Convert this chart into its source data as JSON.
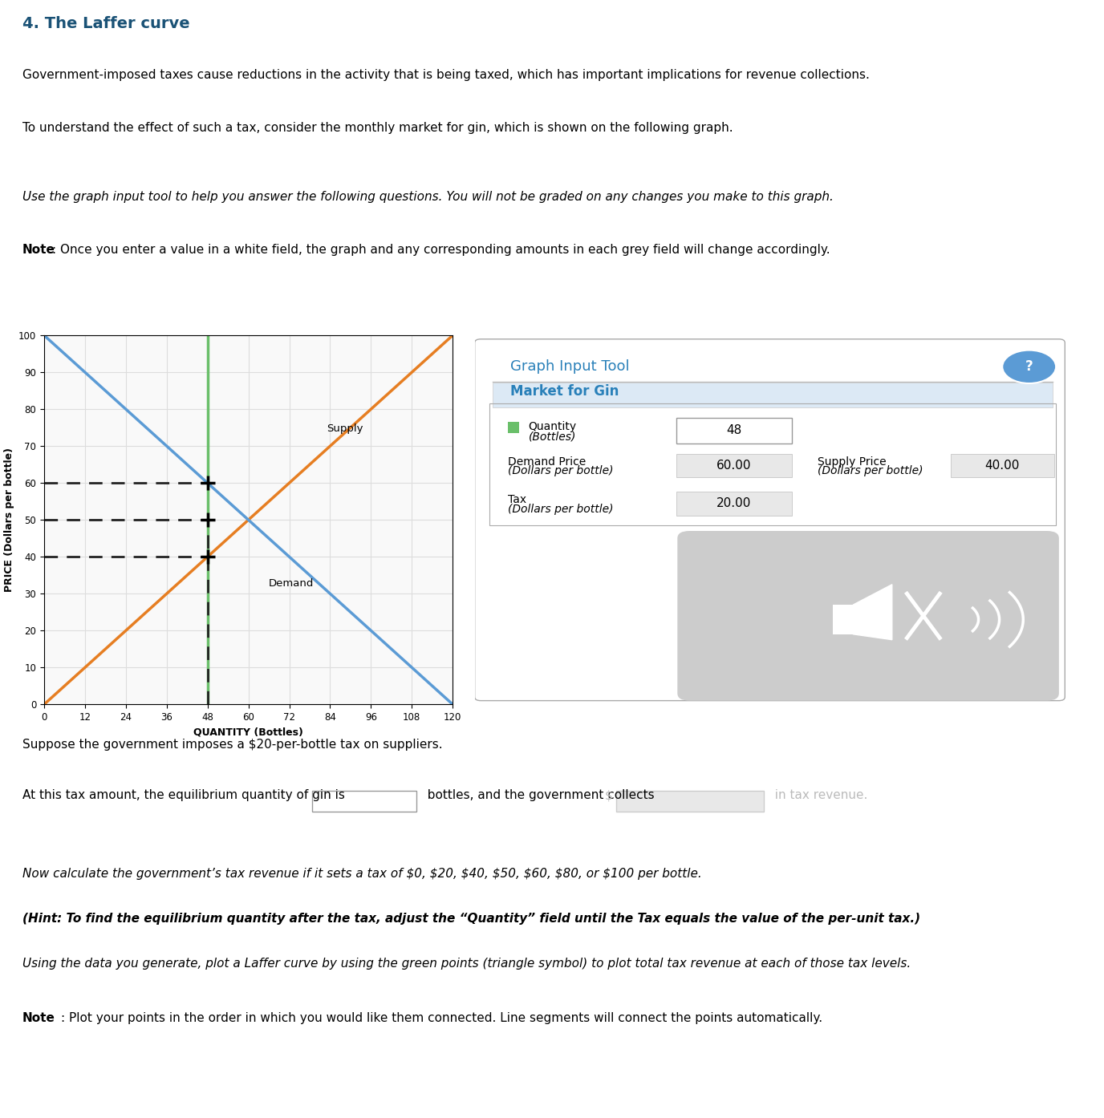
{
  "title": "4. The Laffer curve",
  "title_color": "#1a5276",
  "para1": "Government-imposed taxes cause reductions in the activity that is being taxed, which has important implications for revenue collections.",
  "para2": "To understand the effect of such a tax, consider the monthly market for gin, which is shown on the following graph.",
  "para3_italic": "Use the graph input tool to help you answer the following questions. You will not be graded on any changes you make to this graph.",
  "para4_note": "Note",
  "para4_rest": ": Once you enter a value in a white field, the graph and any corresponding amounts in each grey field will change accordingly.",
  "graph_title": "Market for Gin",
  "graph_input_tool_title": "Graph Input Tool",
  "xlabel": "QUANTITY (Bottles)",
  "ylabel": "PRICE (Dollars per bottle)",
  "supply_label": "Supply",
  "demand_label": "Demand",
  "quantity_value": "48",
  "demand_price_value": "60.00",
  "supply_price_value": "40.00",
  "tax_value": "20.00",
  "supply_color": "#e67e22",
  "demand_color": "#5b9bd5",
  "green_line_color": "#6abf6a",
  "dashed_color": "#222222",
  "x_ticks": [
    0,
    12,
    24,
    36,
    48,
    60,
    72,
    84,
    96,
    108,
    120
  ],
  "y_ticks": [
    0,
    10,
    20,
    30,
    40,
    50,
    60,
    70,
    80,
    90,
    100
  ],
  "xlim": [
    0,
    120
  ],
  "ylim": [
    0,
    100
  ],
  "quantity": 48,
  "demand_price": 60,
  "supply_price": 40,
  "tax": 20,
  "para5": "Suppose the government imposes a $20-per-bottle tax on suppliers.",
  "para6_part1": "At this tax amount, the equilibrium quantity of gin is",
  "para6_part2": "bottles, and the government collects",
  "para6_part3": "in tax revenue.",
  "para7_line1": "Now calculate the government’s tax revenue if it sets a tax of $0, $20, $40, $50, $60, $80, or $100 per bottle. ",
  "para7_hint": "(Hint: To find the equilibrium quantity after the tax, adjust the “Quantity” field until the Tax equals the value of the per-unit tax.) ",
  "para7_line2": "Using the data you generate, plot a Laffer curve by using the green points (triangle symbol) to plot total tax revenue at each of those tax levels.",
  "para8_note": "Note",
  "para8_rest": ": Plot your points in the order in which you would like them connected. Line segments will connect the points automatically.",
  "background_color": "#ffffff",
  "git_title_color": "#2980b9",
  "market_header_color": "#2980b9",
  "grid_color": "#dddddd"
}
